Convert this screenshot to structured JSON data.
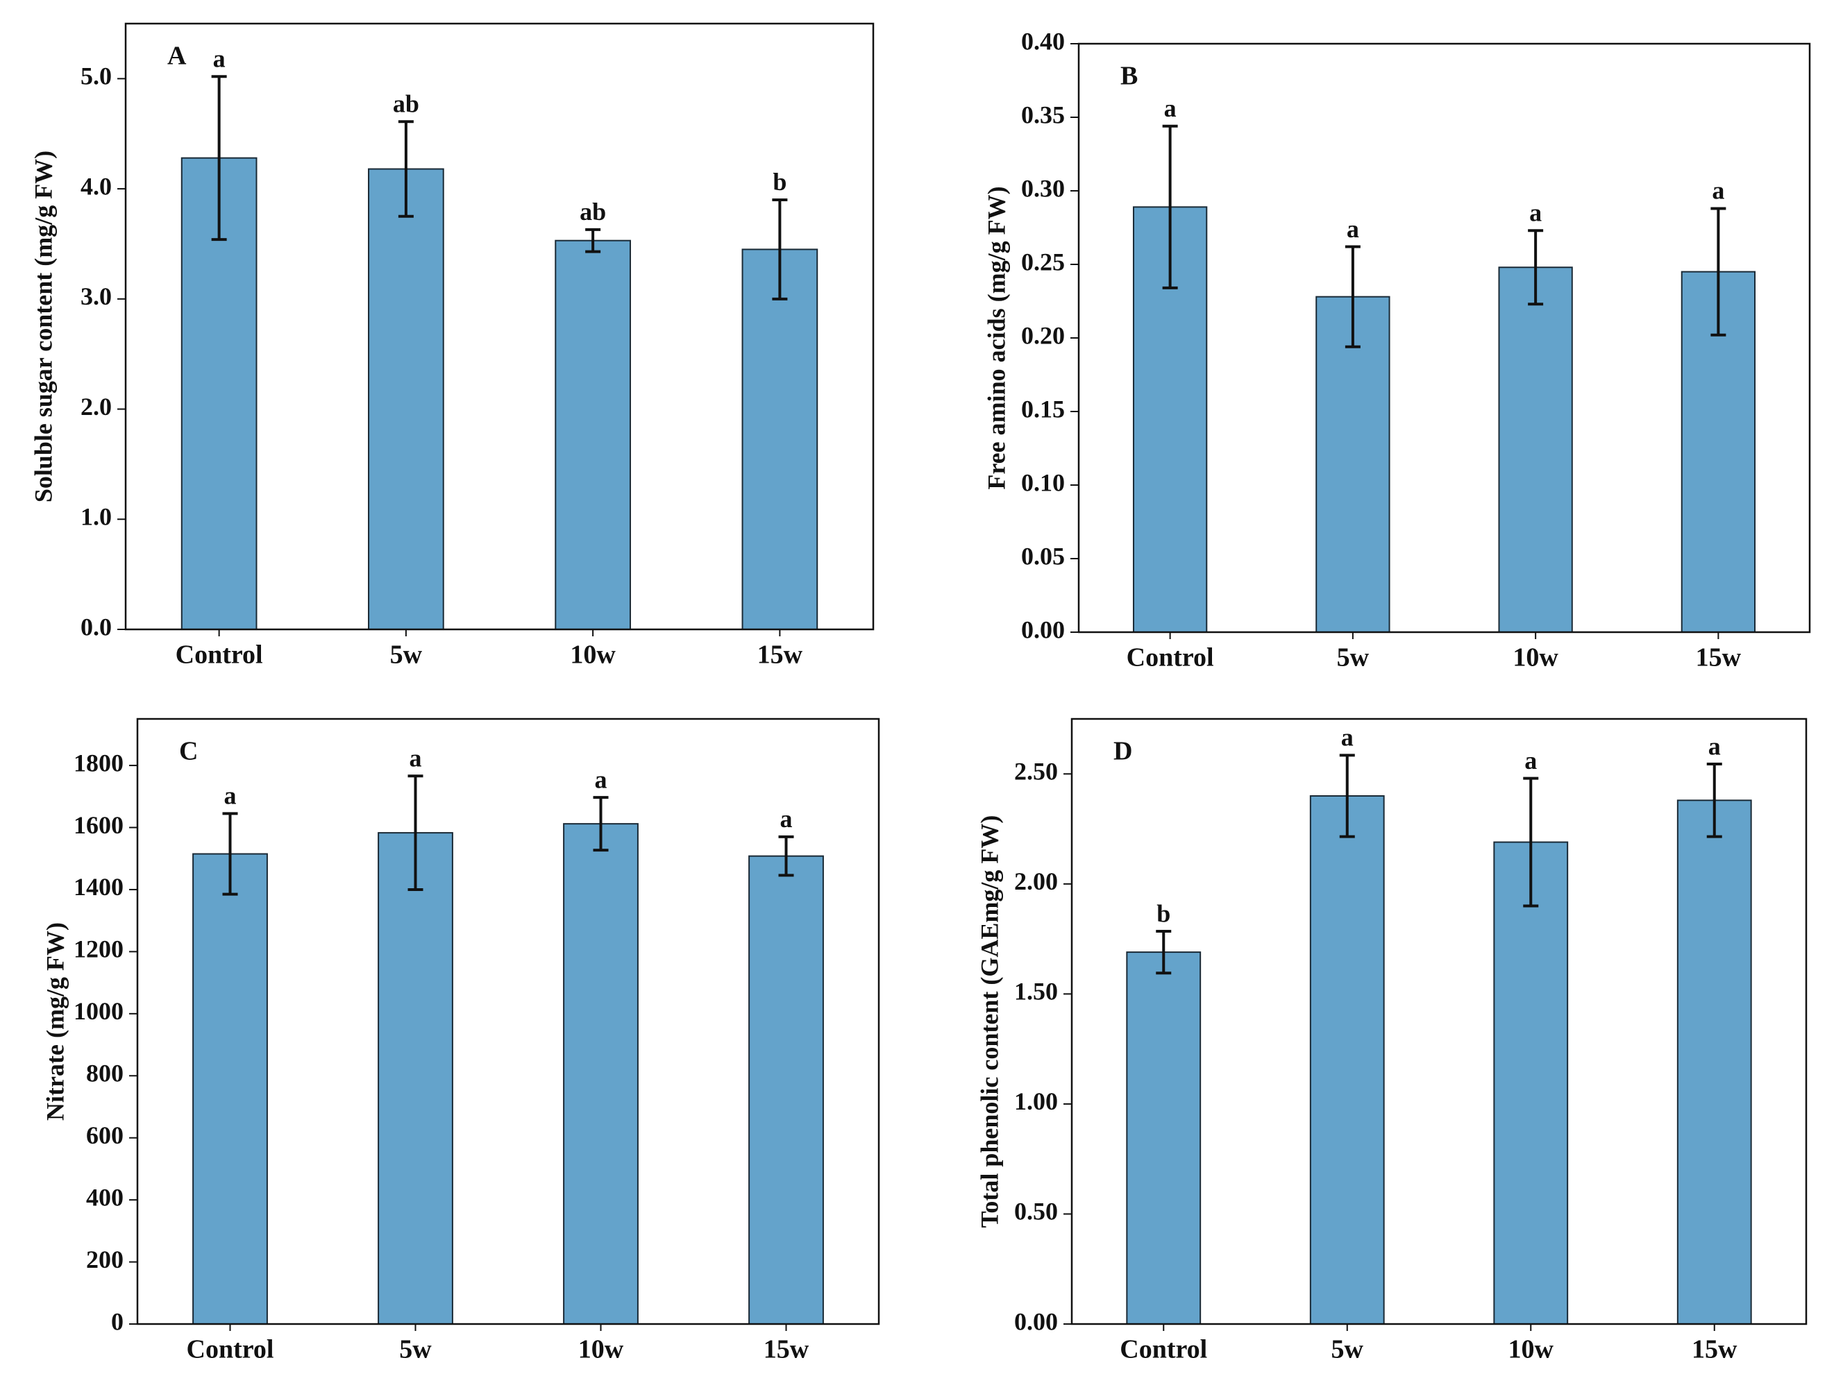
{
  "chart_data": [
    {
      "type": "bar",
      "panel": "A",
      "ylabel": "Soluble sugar content (mg/g FW)",
      "categories": [
        "Control",
        "5w",
        "10w",
        "15w"
      ],
      "values": [
        4.28,
        4.18,
        3.53,
        3.45
      ],
      "errors": [
        0.74,
        0.43,
        0.1,
        0.45
      ],
      "letters": [
        "a",
        "ab",
        "ab",
        "b"
      ],
      "color": "#64a3cb",
      "ylim": [
        0,
        5.5
      ],
      "yticks": [
        {
          "value": 0,
          "label": "0.0"
        },
        {
          "value": 1,
          "label": "1.0"
        },
        {
          "value": 2,
          "label": "2.0"
        },
        {
          "value": 3,
          "label": "3.0"
        },
        {
          "value": 4,
          "label": "4.0"
        },
        {
          "value": 5,
          "label": "5.0"
        }
      ]
    },
    {
      "type": "bar",
      "panel": "B",
      "ylabel": "Free amino acids (mg/g FW)",
      "categories": [
        "Control",
        "5w",
        "10w",
        "15w"
      ],
      "values": [
        0.289,
        0.228,
        0.248,
        0.245
      ],
      "errors": [
        0.055,
        0.034,
        0.025,
        0.043
      ],
      "letters": [
        "a",
        "a",
        "a",
        "a"
      ],
      "color": "#64a3cb",
      "ylim": [
        0,
        0.4
      ],
      "yticks": [
        {
          "value": 0,
          "label": "0.00"
        },
        {
          "value": 0.05,
          "label": "0.05"
        },
        {
          "value": 0.1,
          "label": "0.10"
        },
        {
          "value": 0.15,
          "label": "0.15"
        },
        {
          "value": 0.2,
          "label": "0.20"
        },
        {
          "value": 0.25,
          "label": "0.25"
        },
        {
          "value": 0.3,
          "label": "0.30"
        },
        {
          "value": 0.35,
          "label": "0.35"
        },
        {
          "value": 0.4,
          "label": "0.40"
        }
      ]
    },
    {
      "type": "bar",
      "panel": "C",
      "ylabel": "Nitrate (mg/g FW)",
      "categories": [
        "Control",
        "5w",
        "10w",
        "15w"
      ],
      "values": [
        1515,
        1583,
        1612,
        1508
      ],
      "errors": [
        130,
        183,
        85,
        62
      ],
      "letters": [
        "a",
        "a",
        "a",
        "a"
      ],
      "color": "#64a3cb",
      "ylim": [
        0,
        1950
      ],
      "yticks": [
        0,
        200,
        400,
        600,
        800,
        1000,
        1200,
        1400,
        1600,
        1800
      ]
    },
    {
      "type": "bar",
      "panel": "D",
      "ylabel": "Total phenolic content (GAEmg/g FW)",
      "categories": [
        "Control",
        "5w",
        "10w",
        "15w"
      ],
      "values": [
        1.69,
        2.4,
        2.19,
        2.38
      ],
      "errors": [
        0.095,
        0.185,
        0.29,
        0.165
      ],
      "letters": [
        "b",
        "a",
        "a",
        "a"
      ],
      "color": "#64a3cb",
      "ylim": [
        0,
        2.75
      ],
      "yticks": [
        {
          "value": 0,
          "label": "0.00"
        },
        {
          "value": 0.5,
          "label": "0.50"
        },
        {
          "value": 1,
          "label": "1.00"
        },
        {
          "value": 1.5,
          "label": "1.50"
        },
        {
          "value": 2,
          "label": "2.00"
        },
        {
          "value": 2.5,
          "label": "2.50"
        }
      ]
    }
  ]
}
